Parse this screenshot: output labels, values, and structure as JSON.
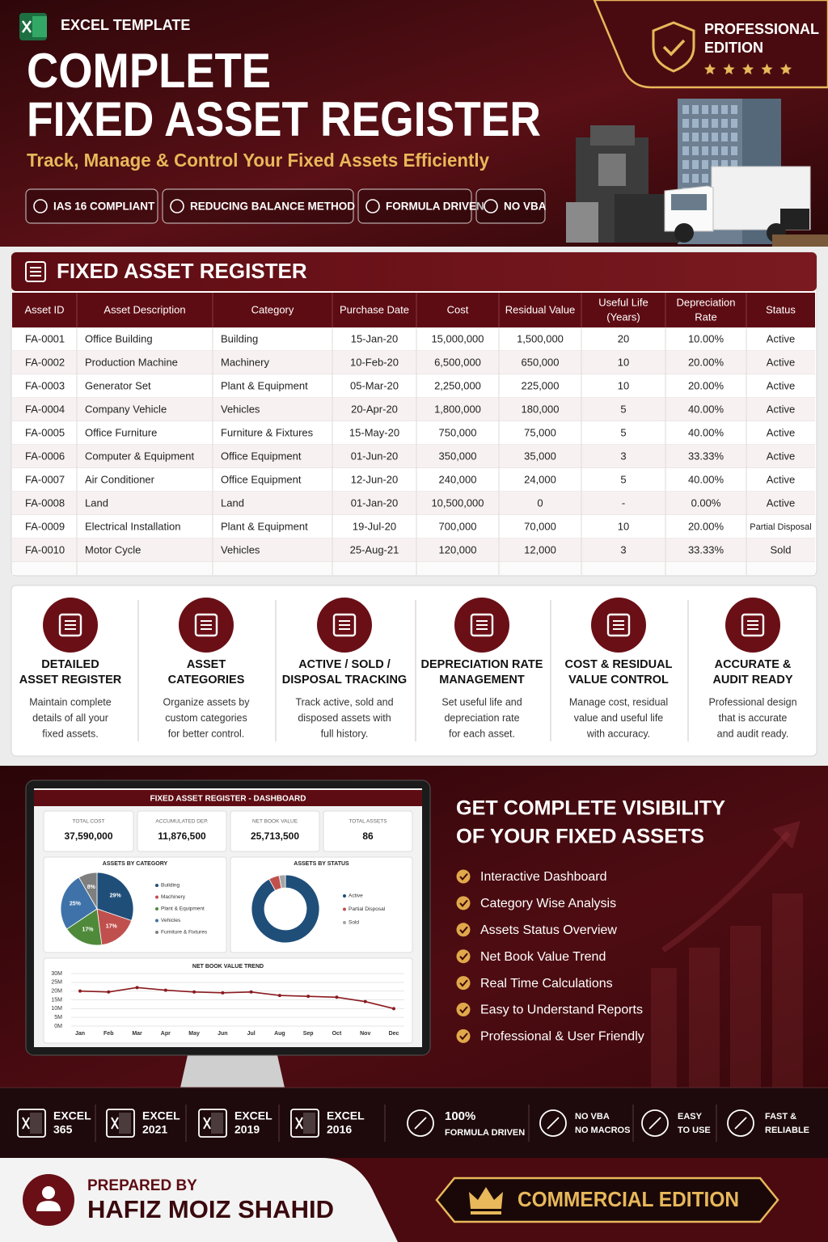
{
  "header": {
    "tag": "EXCEL TEMPLATE",
    "title": [
      "COMPLETE",
      "FIXED ASSET REGISTER"
    ],
    "subtitle": "Track, Manage & Control Your Fixed Assets Efficiently",
    "badges": [
      "IAS 16 COMPLIANT",
      "REDUCING BALANCE METHOD",
      "FORMULA DRIVEN",
      "NO VBA"
    ],
    "edition": [
      "PROFESSIONAL",
      "EDITION"
    ]
  },
  "register": {
    "title": "FIXED ASSET REGISTER",
    "columns": [
      [
        "Asset ID"
      ],
      [
        "Asset Description"
      ],
      [
        "Category"
      ],
      [
        "Purchase Date"
      ],
      [
        "Cost"
      ],
      [
        "Residual Value"
      ],
      [
        "Useful Life",
        "(Years)"
      ],
      [
        "Depreciation",
        "Rate"
      ],
      [
        "Status"
      ]
    ],
    "rows": [
      [
        "FA-0001",
        "Office Building",
        "Building",
        "15-Jan-20",
        "15,000,000",
        "1,500,000",
        "20",
        "10.00%",
        "Active"
      ],
      [
        "FA-0002",
        "Production Machine",
        "Machinery",
        "10-Feb-20",
        "6,500,000",
        "650,000",
        "10",
        "20.00%",
        "Active"
      ],
      [
        "FA-0003",
        "Generator Set",
        "Plant & Equipment",
        "05-Mar-20",
        "2,250,000",
        "225,000",
        "10",
        "20.00%",
        "Active"
      ],
      [
        "FA-0004",
        "Company Vehicle",
        "Vehicles",
        "20-Apr-20",
        "1,800,000",
        "180,000",
        "5",
        "40.00%",
        "Active"
      ],
      [
        "FA-0005",
        "Office Furniture",
        "Furniture & Fixtures",
        "15-May-20",
        "750,000",
        "75,000",
        "5",
        "40.00%",
        "Active"
      ],
      [
        "FA-0006",
        "Computer & Equipment",
        "Office Equipment",
        "01-Jun-20",
        "350,000",
        "35,000",
        "3",
        "33.33%",
        "Active"
      ],
      [
        "FA-0007",
        "Air Conditioner",
        "Office Equipment",
        "12-Jun-20",
        "240,000",
        "24,000",
        "5",
        "40.00%",
        "Active"
      ],
      [
        "FA-0008",
        "Land",
        "Land",
        "01-Jan-20",
        "10,500,000",
        "0",
        "-",
        "0.00%",
        "Active"
      ],
      [
        "FA-0009",
        "Electrical Installation",
        "Plant & Equipment",
        "19-Jul-20",
        "700,000",
        "70,000",
        "10",
        "20.00%",
        "Partial Disposal"
      ],
      [
        "FA-0010",
        "Motor Cycle",
        "Vehicles",
        "25-Aug-21",
        "120,000",
        "12,000",
        "3",
        "33.33%",
        "Sold"
      ]
    ]
  },
  "features": [
    {
      "title": [
        "DETAILED",
        "ASSET REGISTER"
      ],
      "text": [
        "Maintain complete",
        "details of all your",
        "fixed assets."
      ]
    },
    {
      "title": [
        "ASSET",
        "CATEGORIES"
      ],
      "text": [
        "Organize assets by",
        "custom categories",
        "for better control."
      ]
    },
    {
      "title": [
        "ACTIVE / SOLD /",
        "DISPOSAL TRACKING"
      ],
      "text": [
        "Track active, sold and",
        "disposed assets with",
        "full history."
      ]
    },
    {
      "title": [
        "DEPRECIATION RATE",
        "MANAGEMENT"
      ],
      "text": [
        "Set useful life and",
        "depreciation rate",
        "for each asset."
      ]
    },
    {
      "title": [
        "COST & RESIDUAL",
        "VALUE CONTROL"
      ],
      "text": [
        "Manage cost, residual",
        "value and useful life",
        "with accuracy."
      ]
    },
    {
      "title": [
        "ACCURATE &",
        "AUDIT READY"
      ],
      "text": [
        "Professional design",
        "that is accurate",
        "and audit ready."
      ]
    }
  ],
  "dashboard": {
    "title": "FIXED ASSET REGISTER - DASHBOARD",
    "kpis": [
      {
        "label": "TOTAL COST",
        "value": "37,590,000"
      },
      {
        "label": "ACCUMULATED DEP.",
        "value": "11,876,500"
      },
      {
        "label": "NET BOOK VALUE",
        "value": "25,713,500"
      },
      {
        "label": "TOTAL ASSETS",
        "value": "86"
      }
    ]
  },
  "chart_data": [
    {
      "type": "pie",
      "title": "ASSETS BY CATEGORY",
      "categories": [
        "Building",
        "Machinery",
        "Plant & Equipment",
        "Vehicles",
        "Furniture & Fixtures"
      ],
      "values": [
        29,
        17,
        17,
        25,
        8
      ],
      "value_labels": [
        "29%",
        "17%",
        "17%",
        "25%",
        "8%"
      ],
      "colors": [
        "#1f4e79",
        "#c0504d",
        "#4f8a3a",
        "#3f72a8",
        "#7f7f7f"
      ]
    },
    {
      "type": "donut",
      "title": "ASSETS BY STATUS",
      "categories": [
        "Active",
        "Partial Disposal",
        "Sold"
      ],
      "values": [
        92,
        5,
        3
      ],
      "colors": [
        "#1f4e79",
        "#c0504d",
        "#a5a5a5"
      ]
    },
    {
      "type": "line",
      "title": "NET BOOK VALUE TREND",
      "categories": [
        "Jan",
        "Feb",
        "Mar",
        "Apr",
        "May",
        "Jun",
        "Jul",
        "Aug",
        "Sep",
        "Oct",
        "Nov",
        "Dec"
      ],
      "values": [
        20,
        19.5,
        22,
        20.5,
        19.5,
        19,
        19.5,
        17.5,
        17,
        16.5,
        14,
        10
      ],
      "color": "#8b1a1f",
      "ylim": [
        0,
        30
      ],
      "yticks": [
        {
          "value": 0,
          "label": "0M"
        },
        {
          "value": 5,
          "label": "5M"
        },
        {
          "value": 10,
          "label": "10M"
        },
        {
          "value": 15,
          "label": "15M"
        },
        {
          "value": 20,
          "label": "20M"
        },
        {
          "value": 25,
          "label": "25M"
        },
        {
          "value": 30,
          "label": "30M"
        }
      ],
      "grid": true
    }
  ],
  "visibility": {
    "heading": [
      "GET COMPLETE VISIBILITY",
      "OF YOUR FIXED ASSETS"
    ],
    "items": [
      "Interactive Dashboard",
      "Category Wise Analysis",
      "Assets Status Overview",
      "Net Book Value Trend",
      "Real Time Calculations",
      "Easy to Understand Reports",
      "Professional & User Friendly"
    ]
  },
  "compatibility": [
    [
      "EXCEL",
      "365"
    ],
    [
      "EXCEL",
      "2021"
    ],
    [
      "EXCEL",
      "2019"
    ],
    [
      "EXCEL",
      "2016"
    ]
  ],
  "highlights": [
    [
      "100%",
      "FORMULA DRIVEN"
    ],
    [
      "NO VBA",
      "NO MACROS"
    ],
    [
      "EASY",
      "TO USE"
    ],
    [
      "FAST &",
      "RELIABLE"
    ]
  ],
  "footer": {
    "prepared_label": "PREPARED BY",
    "author": "HAFIZ MOIZ SHAHID",
    "edition": "COMMERCIAL EDITION"
  }
}
